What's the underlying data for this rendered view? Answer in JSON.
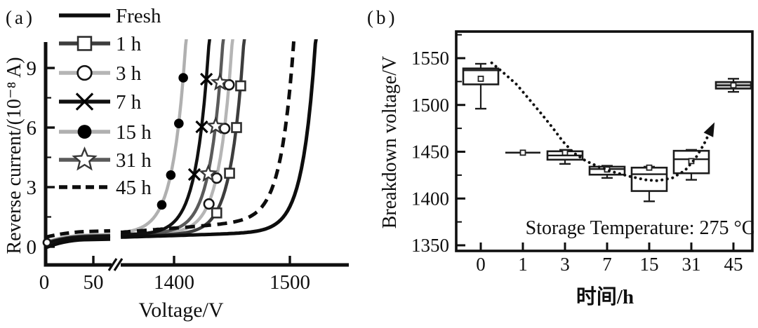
{
  "panel_labels": {
    "a": "(a)",
    "b": "(b)"
  },
  "colors": {
    "background": "#ffffff",
    "ink": "#0f0f0f",
    "light_gray": "#b3b3b3",
    "mid_gray": "#5a5a5a",
    "dark_gray": "#3d3d3d",
    "box45_fill": "#c9c9c9"
  },
  "chart_data": [
    {
      "type": "line",
      "panel": "a",
      "xlabel": "Voltage/V",
      "ylabel": "Reverse current/(10⁻⁸ A)",
      "ylim": [
        0,
        10.3
      ],
      "yticks": [
        0,
        3,
        6,
        9
      ],
      "yticks_minor": [
        1.5,
        4.5,
        7.5
      ],
      "x_axis_break": true,
      "xticks_low": [
        0,
        50
      ],
      "xticks_high": [
        1400,
        1500
      ],
      "baseline_current_1e8A": 0.55,
      "series": [
        {
          "label": "Fresh",
          "line": "solid",
          "marker": "none",
          "color": "#0d0d0d",
          "breakdown_voltage_v": 1522
        },
        {
          "label": "1 h",
          "line": "solid",
          "marker": "open-square",
          "color": "#3d3d3d",
          "breakdown_voltage_v": 1460,
          "marker_currents_1e8A": [
            8.1,
            6.0,
            3.7,
            1.7
          ]
        },
        {
          "label": "3 h",
          "line": "solid",
          "marker": "open-circle",
          "color": "#b5b5b5",
          "breakdown_voltage_v": 1450,
          "marker_currents_1e8A": [
            8.1,
            5.9,
            3.4,
            2.1
          ]
        },
        {
          "label": "7 h",
          "line": "solid",
          "marker": "x",
          "color": "#101010",
          "breakdown_voltage_v": 1430,
          "marker_currents_1e8A": [
            8.4,
            6.0,
            3.6
          ]
        },
        {
          "label": "15 h",
          "line": "solid",
          "marker": "filled-circle",
          "color": "#b0b0b0",
          "breakdown_voltage_v": 1410,
          "marker_currents_1e8A": [
            8.4,
            6.1,
            3.5,
            2.0
          ]
        },
        {
          "label": "31 h",
          "line": "solid",
          "marker": "open-star",
          "color": "#5a5a5a",
          "breakdown_voltage_v": 1442,
          "marker_currents_1e8A": [
            8.2,
            6.0,
            3.6
          ]
        },
        {
          "label": "45 h",
          "line": "dashed",
          "marker": "none",
          "color": "#0d0d0d",
          "breakdown_voltage_v": 1504
        }
      ],
      "legend_order": [
        "Fresh",
        "1 h",
        "3 h",
        "7 h",
        "15 h",
        "31 h",
        "45 h"
      ],
      "draw_order": [
        "3 h",
        "15 h",
        "31 h",
        "1 h",
        "7 h",
        "45 h",
        "Fresh"
      ]
    },
    {
      "type": "box",
      "panel": "b",
      "xlabel": "时间/h",
      "ylabel": "Breakdown voltage/V",
      "annotation": "Storage Temperature: 275 °C",
      "ylim": [
        1345,
        1580
      ],
      "yticks": [
        1350,
        1400,
        1450,
        1500,
        1550
      ],
      "yticks_minor": [
        1375,
        1425,
        1475,
        1525,
        1575
      ],
      "categories": [
        "0",
        "1",
        "3",
        "7",
        "15",
        "31",
        "45"
      ],
      "boxes": [
        {
          "t": "0",
          "q1": 1522,
          "q3": 1539,
          "median": 1537,
          "mean": 1528,
          "whisker_low": 1496,
          "whisker_high": 1544,
          "fill": "#ffffff"
        },
        {
          "t": "1",
          "q1": 1449,
          "q3": 1449,
          "median": 1449,
          "mean": 1449,
          "whisker_low": 1449,
          "whisker_high": 1449,
          "fill": "#ffffff"
        },
        {
          "t": "3",
          "q1": 1441.5,
          "q3": 1450.5,
          "median": 1446,
          "mean": 1449,
          "whisker_low": 1437,
          "whisker_high": 1452,
          "fill": "#ffffff"
        },
        {
          "t": "7",
          "q1": 1425.5,
          "q3": 1434,
          "median": 1431.5,
          "mean": 1431,
          "whisker_low": 1422,
          "whisker_high": 1435,
          "fill": "#ffffff"
        },
        {
          "t": "15",
          "q1": 1408,
          "q3": 1433,
          "median": 1426,
          "mean": 1433,
          "whisker_low": 1397,
          "whisker_high": 1434,
          "fill": "#ffffff"
        },
        {
          "t": "31",
          "q1": 1427,
          "q3": 1451,
          "median": 1442,
          "mean": 1440,
          "whisker_low": 1420,
          "whisker_high": 1452,
          "fill": "#ffffff"
        },
        {
          "t": "45",
          "q1": 1517.5,
          "q3": 1524.5,
          "median": 1521,
          "mean": 1521,
          "whisker_low": 1514,
          "whisker_high": 1528,
          "fill": "#c9c9c9"
        }
      ],
      "trend": {
        "style": "dotted",
        "arrow": true,
        "points": [
          [
            0.26,
            1545
          ],
          [
            0.55,
            1534
          ],
          [
            0.85,
            1522
          ],
          [
            1.15,
            1506
          ],
          [
            1.45,
            1490
          ],
          [
            1.7,
            1476
          ],
          [
            1.95,
            1461
          ],
          [
            2.2,
            1449
          ],
          [
            2.5,
            1440
          ],
          [
            2.8,
            1434
          ],
          [
            3.1,
            1429
          ],
          [
            3.5,
            1424
          ],
          [
            3.9,
            1420
          ],
          [
            4.2,
            1419
          ],
          [
            4.55,
            1422
          ],
          [
            4.85,
            1430
          ],
          [
            5.1,
            1443
          ],
          [
            5.3,
            1458
          ],
          [
            5.45,
            1472
          ]
        ]
      }
    }
  ]
}
